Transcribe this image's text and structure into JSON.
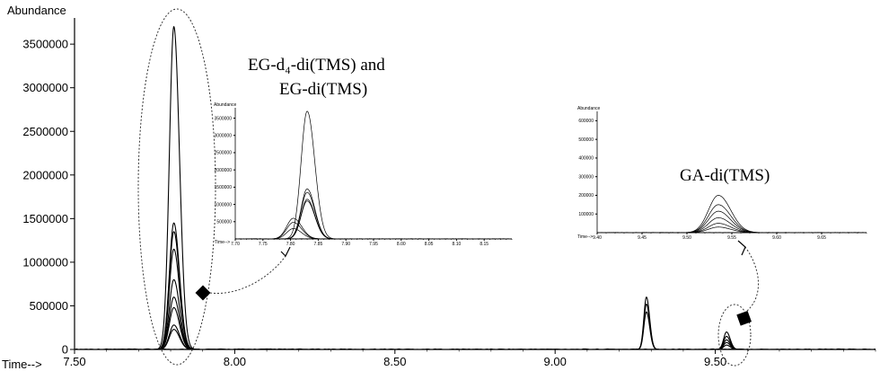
{
  "chart_data": [
    {
      "type": "line",
      "id": "main",
      "ylabel": "Abundance",
      "xlabel": "Time-->",
      "xlim": [
        7.5,
        10.0
      ],
      "ylim": [
        0,
        3800000
      ],
      "x_ticks": [
        7.5,
        8.0,
        8.5,
        9.0,
        9.5
      ],
      "x_tick_labels": [
        "7.50",
        "8.00",
        "8.50",
        "9.00",
        "9.50"
      ],
      "y_ticks": [
        0,
        500000,
        1000000,
        1500000,
        2000000,
        2500000,
        3000000,
        3500000
      ],
      "y_tick_labels": [
        "0",
        "500000",
        "1000000",
        "1500000",
        "2000000",
        "2500000",
        "3000000",
        "3500000"
      ],
      "peaks": [
        {
          "center": 7.81,
          "width": 0.014,
          "heights": [
            3700000,
            1450000,
            1350000,
            1150000,
            800000,
            600000,
            480000,
            280000,
            230000
          ]
        },
        {
          "center": 9.285,
          "width": 0.008,
          "heights": [
            600000,
            520000,
            430000
          ]
        },
        {
          "center": 9.535,
          "width": 0.009,
          "heights": [
            200000,
            150000,
            110000,
            80000,
            50000
          ]
        }
      ],
      "annotations": {
        "eg_label_line1": "EG-d₄-di(TMS)  and",
        "eg_label_line2": "EG-di(TMS)",
        "ga_label": "GA-di(TMS)"
      }
    },
    {
      "type": "line",
      "id": "inset_eg",
      "ylabel": "Abundance",
      "xlabel": "Time-->",
      "xlim": [
        7.7,
        8.2
      ],
      "ylim": [
        0,
        3800000
      ],
      "x_ticks": [
        7.7,
        7.75,
        7.8,
        7.85,
        7.9,
        7.95,
        8.0,
        8.05,
        8.1,
        8.15
      ],
      "x_tick_labels": [
        "7.70",
        "7.75",
        "7.80",
        "7.85",
        "7.90",
        "7.95",
        "8.00",
        "8.05",
        "8.10",
        "8.15"
      ],
      "y_ticks": [
        500000,
        1000000,
        1500000,
        2000000,
        2500000,
        3000000,
        3500000
      ],
      "y_tick_labels": [
        "500000",
        "1000000",
        "1500000",
        "2000000",
        "2500000",
        "3000000",
        "3500000"
      ],
      "peaks": [
        {
          "center": 7.83,
          "width": 0.011,
          "heights": [
            3700000,
            1450000,
            1350000,
            1150000,
            1100000
          ]
        },
        {
          "center": 7.805,
          "width": 0.012,
          "heights": [
            600000,
            480000,
            300000
          ]
        }
      ]
    },
    {
      "type": "line",
      "id": "inset_ga",
      "ylabel": "Abundance",
      "xlabel": "Time-->",
      "xlim": [
        9.4,
        9.7
      ],
      "ylim": [
        0,
        650000
      ],
      "x_ticks": [
        9.4,
        9.45,
        9.5,
        9.55,
        9.6,
        9.65
      ],
      "x_tick_labels": [
        "9.40",
        "9.45",
        "9.50",
        "9.55",
        "9.60",
        "9.65"
      ],
      "y_ticks": [
        100000,
        200000,
        300000,
        400000,
        500000,
        600000
      ],
      "y_tick_labels": [
        "100000",
        "200000",
        "300000",
        "400000",
        "500000",
        "600000"
      ],
      "peaks": [
        {
          "center": 9.535,
          "width": 0.011,
          "heights": [
            200000,
            150000,
            115000,
            80000,
            50000,
            30000
          ]
        }
      ]
    }
  ]
}
